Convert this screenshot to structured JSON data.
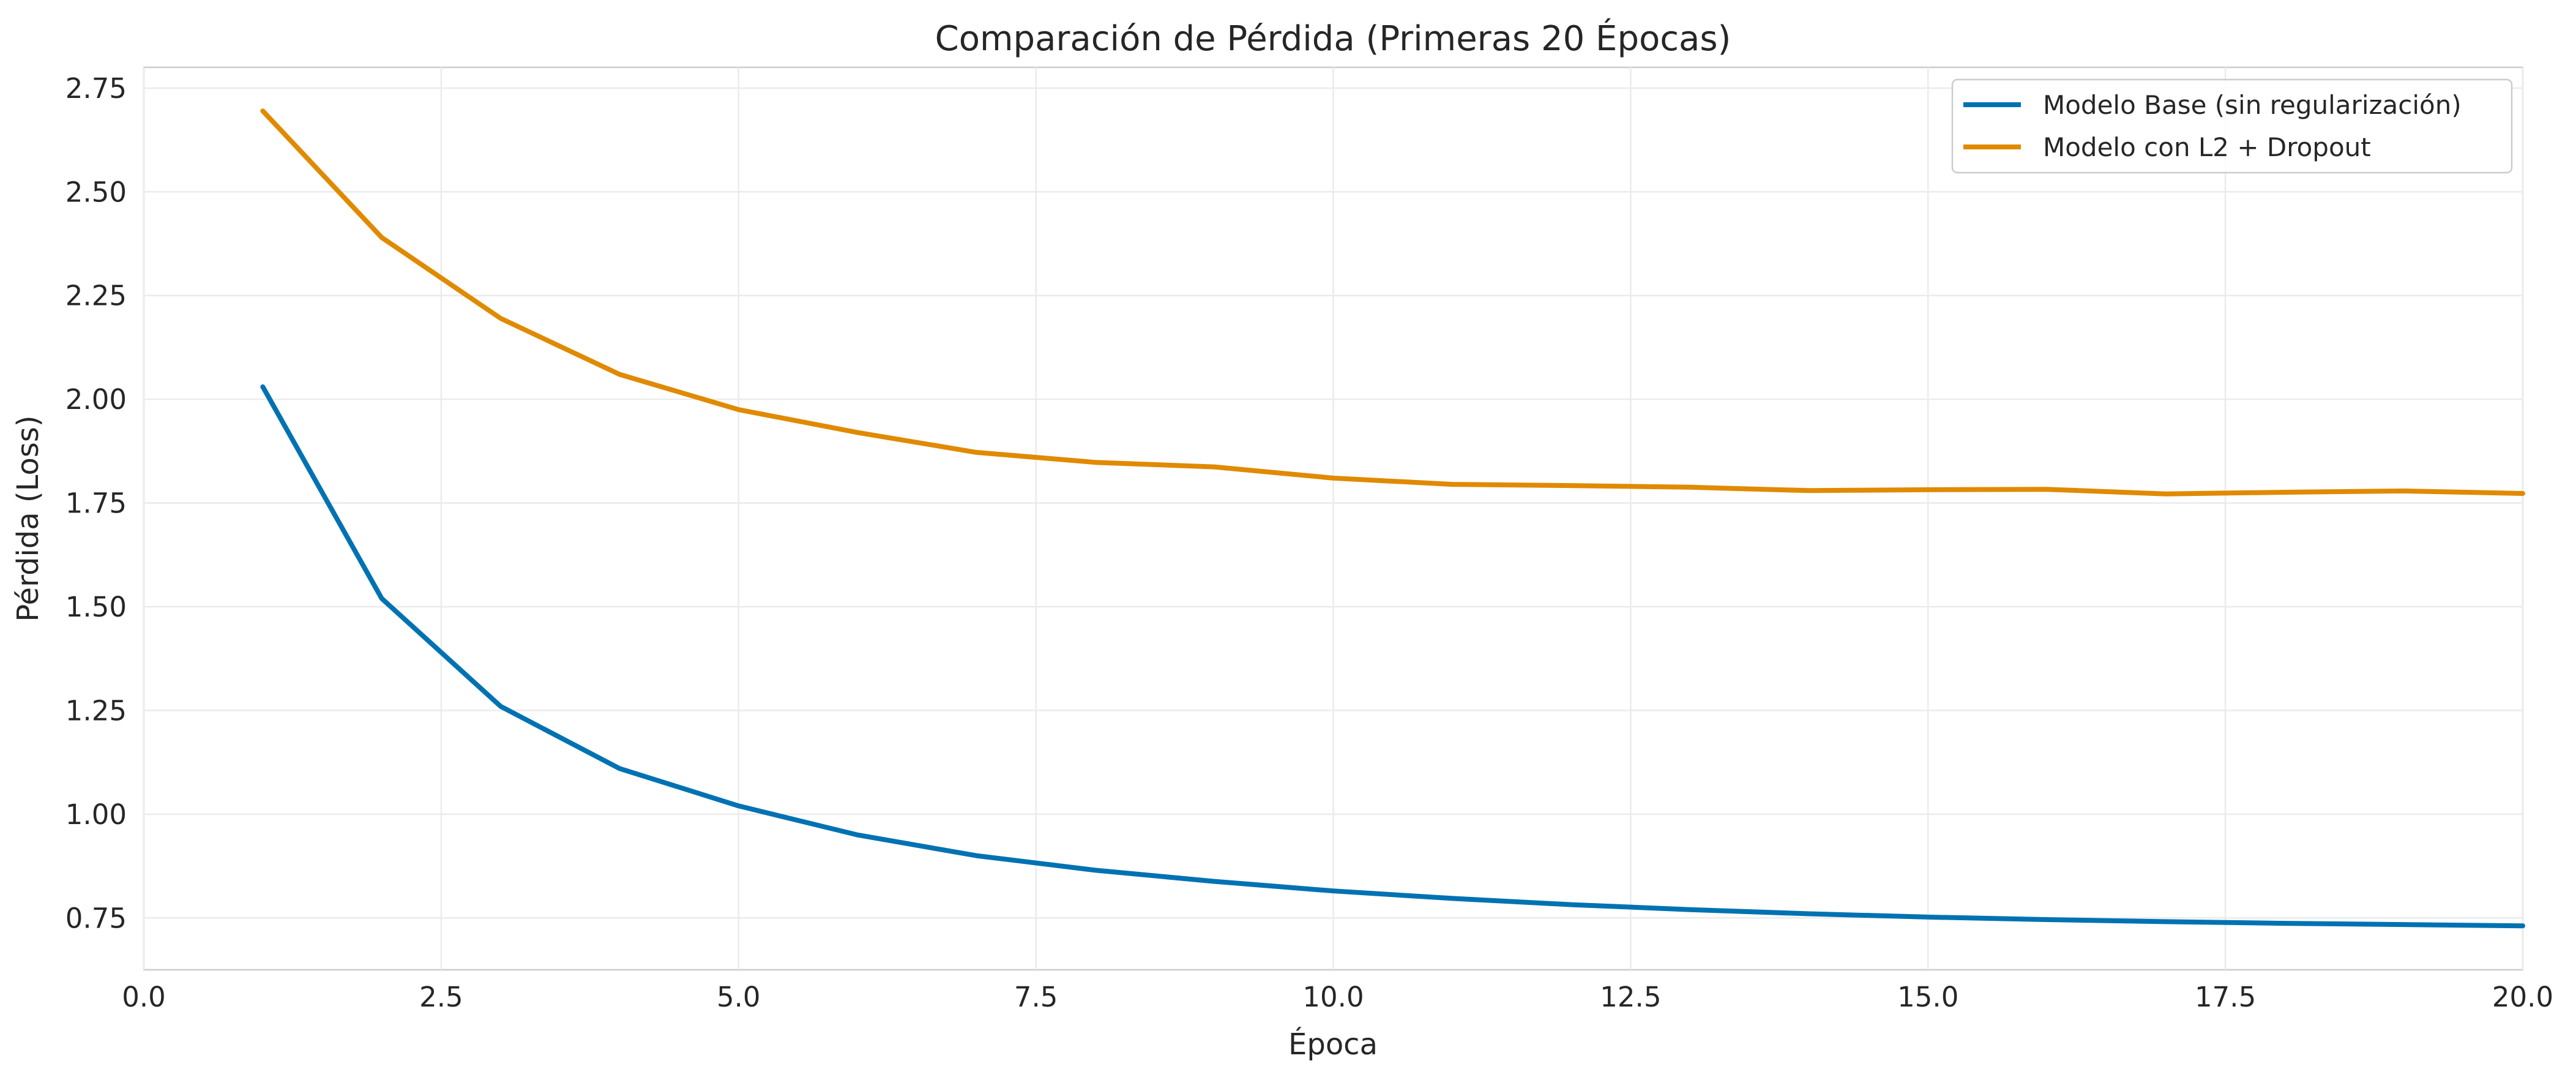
{
  "chart_data": {
    "type": "line",
    "title": "Comparación de Pérdida (Primeras 20 Épocas)",
    "xlabel": "Época",
    "ylabel": "Pérdida (Loss)",
    "xlim": [
      0,
      20
    ],
    "ylim": [
      0.625,
      2.8
    ],
    "xticks": [
      0.0,
      2.5,
      5.0,
      7.5,
      10.0,
      12.5,
      15.0,
      17.5,
      20.0
    ],
    "xtick_labels": [
      "0.0",
      "2.5",
      "5.0",
      "7.5",
      "10.0",
      "12.5",
      "15.0",
      "17.5",
      "20.0"
    ],
    "yticks": [
      0.75,
      1.0,
      1.25,
      1.5,
      1.75,
      2.0,
      2.25,
      2.5,
      2.75
    ],
    "ytick_labels": [
      "0.75",
      "1.00",
      "1.25",
      "1.50",
      "1.75",
      "2.00",
      "2.25",
      "2.50",
      "2.75"
    ],
    "grid": true,
    "legend_position": "top-right",
    "x": [
      1,
      2,
      3,
      4,
      5,
      6,
      7,
      8,
      9,
      10,
      11,
      12,
      13,
      14,
      15,
      16,
      17,
      18,
      19,
      20
    ],
    "series": [
      {
        "name": "Modelo Base (sin regularización)",
        "color": "#0072B2",
        "values": [
          2.03,
          1.52,
          1.26,
          1.11,
          1.02,
          0.95,
          0.9,
          0.865,
          0.838,
          0.815,
          0.797,
          0.782,
          0.77,
          0.76,
          0.752,
          0.746,
          0.741,
          0.737,
          0.734,
          0.731
        ]
      },
      {
        "name": "Modelo con L2 + Dropout",
        "color": "#E08A00",
        "values": [
          2.695,
          2.39,
          2.195,
          2.06,
          1.975,
          1.92,
          1.872,
          1.848,
          1.837,
          1.81,
          1.795,
          1.792,
          1.788,
          1.78,
          1.782,
          1.783,
          1.772,
          1.776,
          1.779,
          1.773
        ]
      }
    ]
  }
}
